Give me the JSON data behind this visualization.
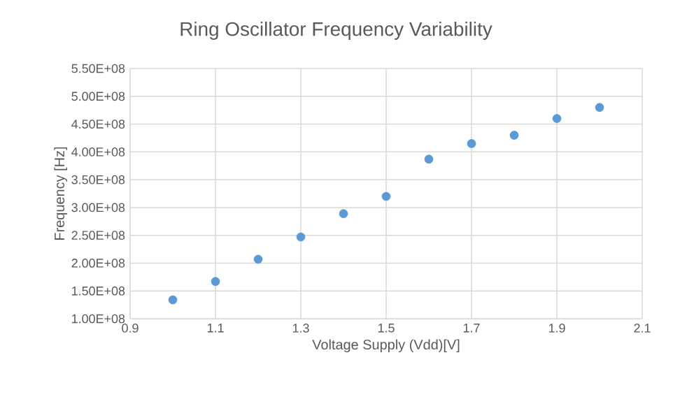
{
  "chart_data": {
    "type": "scatter",
    "title": "Ring Oscillator Frequency Variability",
    "xlabel": "Voltage Supply (Vdd)[V]",
    "ylabel": "Frequency [Hz]",
    "x": [
      1.0,
      1.1,
      1.2,
      1.3,
      1.4,
      1.5,
      1.6,
      1.7,
      1.8,
      1.9,
      2.0
    ],
    "values": [
      134000000.0,
      167000000.0,
      207000000.0,
      247000000.0,
      289000000.0,
      320000000.0,
      387000000.0,
      415000000.0,
      430000000.0,
      460000000.0,
      480000000.0
    ],
    "color": "#5b9bd5",
    "marker": "circle",
    "grid": true,
    "xlim": [
      0.9,
      2.1
    ],
    "xticks": [
      0.9,
      1.1,
      1.3,
      1.5,
      1.7,
      1.9,
      2.1
    ],
    "ylim": [
      100000000.0,
      550000000.0
    ],
    "yticks": [
      {
        "value": 100000000.0,
        "label": "1.00E+08"
      },
      {
        "value": 150000000.0,
        "label": "1.50E+08"
      },
      {
        "value": 200000000.0,
        "label": "2.00E+08"
      },
      {
        "value": 250000000.0,
        "label": "2.50E+08"
      },
      {
        "value": 300000000.0,
        "label": "3.00E+08"
      },
      {
        "value": 350000000.0,
        "label": "3.50E+08"
      },
      {
        "value": 400000000.0,
        "label": "4.00E+08"
      },
      {
        "value": 450000000.0,
        "label": "4.50E+08"
      },
      {
        "value": 500000000.0,
        "label": "5.00E+08"
      },
      {
        "value": 550000000.0,
        "label": "5.50E+08"
      }
    ]
  }
}
